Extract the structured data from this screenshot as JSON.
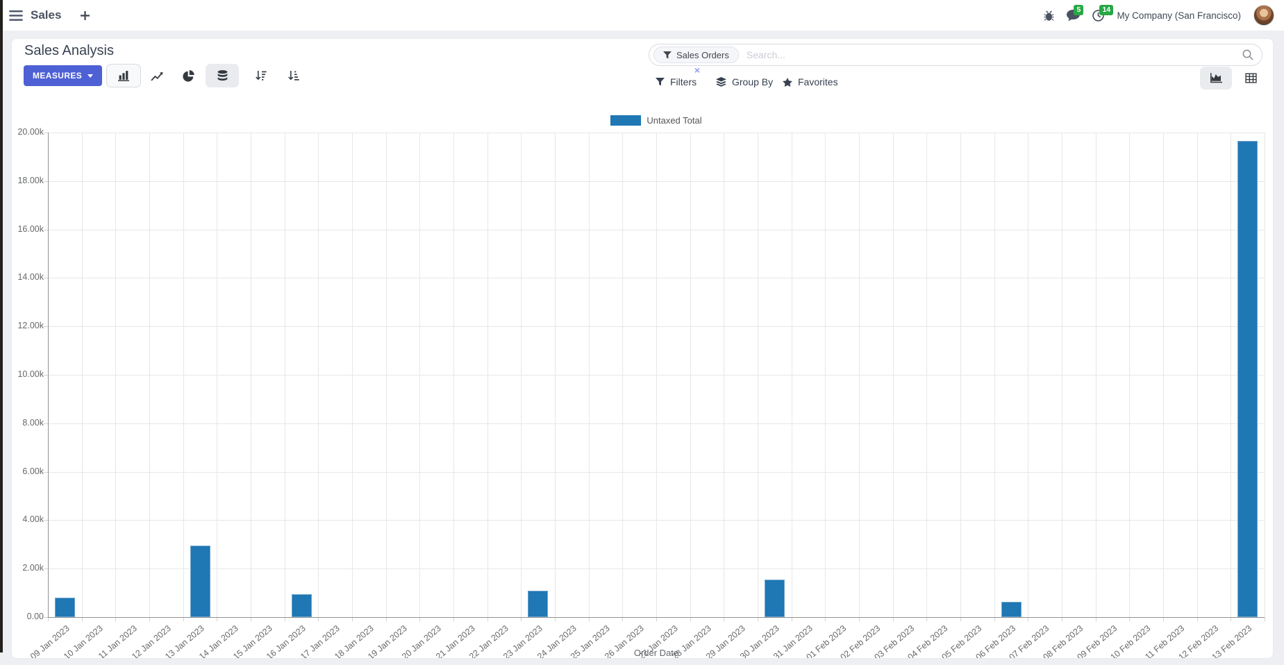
{
  "navbar": {
    "app_menu_label": "Sales",
    "messages_badge": "5",
    "activities_badge": "14",
    "company_name": "My Company (San Francisco)"
  },
  "control_panel": {
    "title": "Sales Analysis",
    "measures_button": "MEASURES",
    "search": {
      "facet_label": "Sales Orders",
      "facet_remove": "×",
      "placeholder": "Search..."
    },
    "filters_label": "Filters",
    "group_by_label": "Group By",
    "favorites_label": "Favorites"
  },
  "colors": {
    "accent": "#4d61d5",
    "badge_green": "#28a745",
    "bar_blue": "#1f77b4"
  },
  "chart_data": {
    "type": "bar",
    "title": "",
    "xlabel": "Order Date",
    "ylabel": "",
    "legend_position": "top",
    "grid": true,
    "bar_color": "#1f77b4",
    "ylim": [
      0,
      20000
    ],
    "y_tick_step": 2000,
    "y_tick_labels": [
      "0.00",
      "2.00k",
      "4.00k",
      "6.00k",
      "8.00k",
      "10.00k",
      "12.00k",
      "14.00k",
      "16.00k",
      "18.00k",
      "20.00k"
    ],
    "categories": [
      "09 Jan 2023",
      "10 Jan 2023",
      "11 Jan 2023",
      "12 Jan 2023",
      "13 Jan 2023",
      "14 Jan 2023",
      "15 Jan 2023",
      "16 Jan 2023",
      "17 Jan 2023",
      "18 Jan 2023",
      "19 Jan 2023",
      "20 Jan 2023",
      "21 Jan 2023",
      "22 Jan 2023",
      "23 Jan 2023",
      "24 Jan 2023",
      "25 Jan 2023",
      "26 Jan 2023",
      "27 Jan 2023",
      "28 Jan 2023",
      "29 Jan 2023",
      "30 Jan 2023",
      "31 Jan 2023",
      "01 Feb 2023",
      "02 Feb 2023",
      "03 Feb 2023",
      "04 Feb 2023",
      "05 Feb 2023",
      "06 Feb 2023",
      "07 Feb 2023",
      "08 Feb 2023",
      "09 Feb 2023",
      "10 Feb 2023",
      "11 Feb 2023",
      "12 Feb 2023",
      "13 Feb 2023"
    ],
    "series": [
      {
        "name": "Untaxed Total",
        "values": [
          800,
          0,
          0,
          0,
          2950,
          0,
          0,
          950,
          0,
          0,
          0,
          0,
          0,
          0,
          1100,
          0,
          0,
          0,
          0,
          0,
          0,
          1550,
          0,
          0,
          0,
          0,
          0,
          0,
          630,
          0,
          0,
          0,
          0,
          0,
          0,
          19670
        ]
      }
    ]
  }
}
